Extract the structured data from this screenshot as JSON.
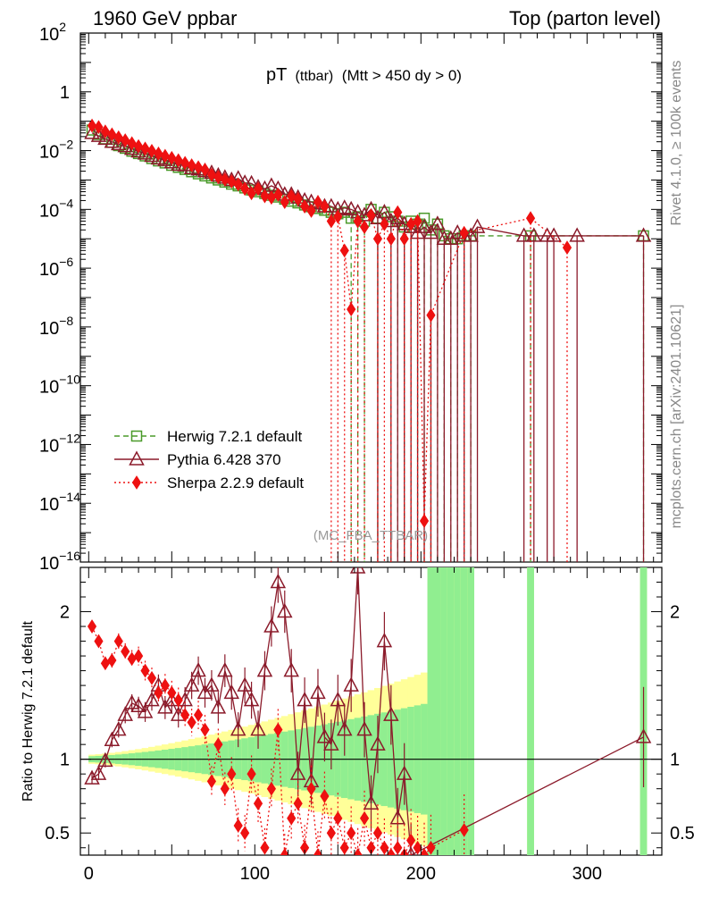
{
  "header": {
    "left": "1960 GeV ppbar",
    "right": "Top (parton level)"
  },
  "side_text": {
    "rivet": "Rivet 4.1.0, ≥ 100k events",
    "mcplots": "mcplots.cern.ch [arXiv:2401.10621]"
  },
  "colors": {
    "herwig": "#4a9a2a",
    "pythia": "#8b1a2a",
    "sherpa": "#ee1111",
    "band_inner": "#90ee90",
    "band_outer": "#ffff99"
  },
  "chart_data": {
    "type": "line",
    "title_main": "pT",
    "title_sub": "(ttbar)",
    "title_cut": "(Mtt > 450 dy > 0)",
    "watermark": "(MC_FBA_TTBAR)",
    "xlim": [
      -5,
      345
    ],
    "x_ticks": [
      0,
      100,
      200,
      300
    ],
    "x_tick_labels": [
      "0",
      "100",
      "200",
      "300"
    ],
    "main": {
      "yscale": "log",
      "ylim_exp": [
        -16,
        2
      ],
      "y_tick_exps": [
        -16,
        -14,
        -12,
        -10,
        -8,
        -6,
        -4,
        -2,
        0,
        2
      ],
      "y_tick_labels": [
        {
          "base": "10",
          "exp": "−16"
        },
        {
          "base": "10",
          "exp": "−14"
        },
        {
          "base": "10",
          "exp": "−12"
        },
        {
          "base": "10",
          "exp": "−10"
        },
        {
          "base": "10",
          "exp": "−8"
        },
        {
          "base": "10",
          "exp": "−6"
        },
        {
          "base": "10",
          "exp": "−4"
        },
        {
          "base": "10",
          "exp": "−2"
        },
        {
          "base": "1",
          "exp": ""
        },
        {
          "base": "10",
          "exp": "2"
        }
      ]
    },
    "ratio": {
      "ylabel": "Ratio to Herwig 7.2.1 default",
      "ylim": [
        0.35,
        2.3
      ],
      "y_ticks": [
        0.5,
        1,
        2
      ],
      "y_tick_labels": [
        "0.5",
        "1",
        "2"
      ]
    },
    "legend": [
      {
        "name": "Herwig 7.2.1 default",
        "key": "herwig",
        "marker": "square",
        "dash": "dashed"
      },
      {
        "name": "Pythia 6.428 370",
        "key": "pythia",
        "marker": "triangle",
        "dash": "solid"
      },
      {
        "name": "Sherpa 2.2.9 default",
        "key": "sherpa",
        "marker": "diamond",
        "dash": "dotted"
      }
    ],
    "series": [
      {
        "name": "Herwig 7.2.1 default",
        "key": "herwig",
        "x": [
          2,
          6,
          10,
          14,
          18,
          22,
          26,
          30,
          34,
          38,
          42,
          46,
          50,
          54,
          58,
          62,
          66,
          70,
          74,
          78,
          82,
          86,
          90,
          94,
          98,
          102,
          106,
          110,
          114,
          118,
          122,
          126,
          130,
          134,
          138,
          142,
          146,
          150,
          154,
          158,
          162,
          166,
          170,
          174,
          178,
          182,
          186,
          190,
          194,
          198,
          202,
          206,
          210,
          214,
          218,
          222,
          226,
          230,
          266,
          334
        ],
        "log10y": [
          -1.3,
          -1.45,
          -1.6,
          -1.72,
          -1.83,
          -1.92,
          -2.02,
          -2.1,
          -2.18,
          -2.27,
          -2.35,
          -2.42,
          -2.5,
          -2.57,
          -2.64,
          -2.72,
          -2.79,
          -2.86,
          -2.93,
          -3.0,
          -3.07,
          -3.14,
          -3.2,
          -3.27,
          -3.34,
          -3.4,
          -3.46,
          -3.52,
          -3.58,
          -3.65,
          -3.72,
          -3.78,
          -3.85,
          -3.91,
          -3.97,
          -4.03,
          -4.1,
          -4.15,
          -4.1,
          -4.3,
          -4.25,
          -4.4,
          -4.0,
          -4.3,
          -4.1,
          -4.25,
          -4.4,
          -4.6,
          -4.4,
          -4.5,
          -4.3,
          -4.7,
          -4.5,
          -4.9,
          -5.0,
          -5.0,
          -4.9,
          -4.9,
          -4.9,
          -4.9
        ]
      },
      {
        "name": "Pythia 6.428 370",
        "key": "pythia",
        "x": [
          2,
          6,
          10,
          14,
          18,
          22,
          26,
          30,
          34,
          38,
          42,
          46,
          50,
          54,
          58,
          62,
          66,
          70,
          74,
          78,
          82,
          86,
          90,
          94,
          98,
          102,
          106,
          110,
          114,
          118,
          122,
          126,
          130,
          134,
          138,
          142,
          146,
          150,
          154,
          158,
          162,
          166,
          170,
          174,
          178,
          182,
          186,
          190,
          194,
          198,
          202,
          206,
          210,
          214,
          218,
          222,
          226,
          230,
          234,
          262,
          268,
          276,
          280,
          294,
          334
        ],
        "log10y": [
          -1.4,
          -1.5,
          -1.6,
          -1.7,
          -1.78,
          -1.85,
          -1.94,
          -2.03,
          -2.1,
          -2.18,
          -2.27,
          -2.32,
          -2.4,
          -2.48,
          -2.5,
          -2.6,
          -2.64,
          -2.7,
          -2.76,
          -2.85,
          -2.92,
          -3.0,
          -2.95,
          -3.1,
          -3.12,
          -3.25,
          -3.3,
          -3.2,
          -3.3,
          -3.5,
          -3.5,
          -3.6,
          -3.7,
          -3.75,
          -3.8,
          -3.9,
          -3.9,
          -4.0,
          -3.95,
          -4.0,
          -4.1,
          -4.2,
          -4.0,
          -4.3,
          -4.1,
          -4.4,
          -4.3,
          -4.5,
          -4.6,
          -4.8,
          -4.6,
          -4.8,
          -4.5,
          -5.0,
          -5.0,
          -4.8,
          -4.9,
          -4.9,
          -4.6,
          -4.9,
          -4.9,
          -4.9,
          -4.9,
          -4.9,
          -4.9
        ]
      },
      {
        "name": "Sherpa 2.2.9 default",
        "key": "sherpa",
        "x": [
          2,
          6,
          10,
          14,
          18,
          22,
          26,
          30,
          34,
          38,
          42,
          46,
          50,
          54,
          58,
          62,
          66,
          70,
          74,
          78,
          82,
          86,
          90,
          94,
          98,
          102,
          106,
          110,
          114,
          118,
          122,
          126,
          130,
          134,
          138,
          142,
          146,
          150,
          154,
          158,
          162,
          166,
          170,
          174,
          178,
          182,
          186,
          190,
          194,
          198,
          202,
          206,
          226,
          266,
          288
        ],
        "log10y": [
          -1.15,
          -1.2,
          -1.35,
          -1.45,
          -1.55,
          -1.65,
          -1.75,
          -1.85,
          -1.93,
          -2.01,
          -2.1,
          -2.18,
          -2.25,
          -2.33,
          -2.42,
          -2.5,
          -2.57,
          -2.65,
          -2.82,
          -2.9,
          -2.98,
          -3.05,
          -3.15,
          -3.3,
          -3.45,
          -3.3,
          -3.55,
          -3.6,
          -3.5,
          -3.75,
          -3.55,
          -3.65,
          -3.9,
          -4.05,
          -3.75,
          -3.9,
          -4.4,
          -4.25,
          -5.4,
          -7.4,
          -4.4,
          -4.6,
          -4.2,
          -5.0,
          -4.5,
          -5.0,
          -4.1,
          -5.0,
          -4.5,
          -4.4,
          -14.6,
          -7.6,
          -4.8,
          -4.3,
          -5.3
        ]
      }
    ],
    "ratio_series": [
      {
        "key": "pythia",
        "x": [
          2,
          6,
          10,
          14,
          18,
          22,
          26,
          30,
          34,
          38,
          42,
          46,
          50,
          54,
          58,
          62,
          66,
          70,
          74,
          78,
          82,
          86,
          90,
          94,
          98,
          102,
          106,
          110,
          114,
          118,
          122,
          126,
          130,
          134,
          138,
          142,
          146,
          150,
          154,
          158,
          162,
          166,
          170,
          174,
          178,
          182,
          186,
          190,
          194,
          334
        ],
        "y": [
          0.87,
          0.9,
          0.99,
          1.13,
          1.2,
          1.3,
          1.38,
          1.36,
          1.32,
          1.4,
          1.5,
          1.35,
          1.4,
          1.3,
          1.4,
          1.5,
          1.6,
          1.45,
          1.5,
          1.35,
          1.6,
          1.45,
          1.2,
          1.5,
          1.4,
          1.2,
          1.6,
          1.9,
          2.2,
          2.0,
          1.6,
          0.9,
          1.4,
          0.85,
          1.45,
          1.15,
          1.1,
          1.4,
          1.2,
          1.5,
          2.3,
          1.2,
          0.7,
          1.1,
          1.8,
          1.3,
          0.6,
          0.9,
          0.35,
          1.15
        ]
      },
      {
        "key": "sherpa",
        "x": [
          2,
          6,
          10,
          14,
          18,
          22,
          26,
          30,
          34,
          38,
          42,
          46,
          50,
          54,
          58,
          62,
          66,
          70,
          74,
          78,
          82,
          86,
          90,
          94,
          98,
          102,
          106,
          110,
          114,
          118,
          122,
          126,
          130,
          134,
          138,
          142,
          146,
          150,
          154,
          158,
          162,
          166,
          170,
          174,
          178,
          182,
          186,
          190,
          194,
          198,
          202,
          206,
          226
        ],
        "y": [
          1.9,
          1.8,
          1.65,
          1.67,
          1.8,
          1.73,
          1.68,
          1.7,
          1.6,
          1.55,
          1.45,
          1.5,
          1.45,
          1.4,
          1.3,
          1.25,
          1.3,
          1.2,
          0.85,
          1.1,
          0.8,
          0.9,
          0.55,
          0.5,
          0.9,
          0.7,
          0.4,
          0.8,
          1.2,
          0.35,
          0.6,
          0.7,
          0.4,
          0.8,
          0.35,
          0.75,
          0.5,
          0.6,
          0.4,
          0.5,
          0.35,
          0.6,
          0.4,
          0.5,
          0.4,
          0.35,
          0.4,
          0.35,
          0.45,
          0.4,
          0.35,
          0.4,
          0.52
        ]
      }
    ]
  }
}
